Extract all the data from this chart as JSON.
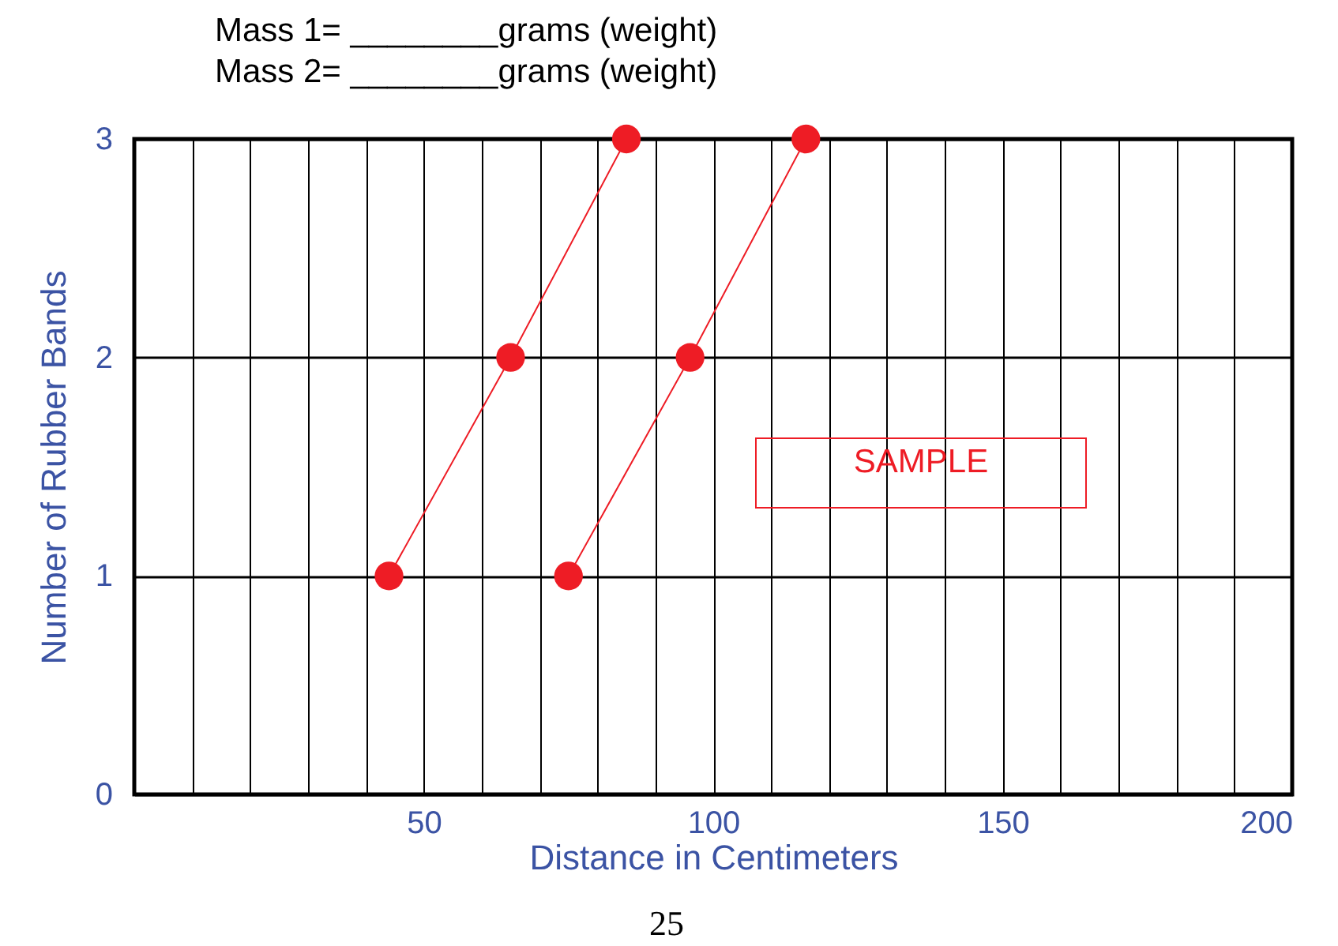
{
  "chart_data": {
    "type": "line",
    "xlabel": "Distance in Centimeters",
    "ylabel": "Number of Rubber Bands",
    "annotations": [
      "Mass 1= ________grams (weight)",
      "Mass 2= ________grams (weight)",
      "SAMPLE",
      "25"
    ],
    "series": [
      {
        "color": "#ee1c25",
        "x": [
          44,
          65,
          85
        ],
        "values": [
          1,
          2,
          3
        ]
      },
      {
        "color": "#ee1c25",
        "x": [
          75,
          96,
          116
        ],
        "values": [
          1,
          2,
          3
        ]
      }
    ],
    "xlim": [
      0,
      200
    ],
    "xticks": [
      {
        "value": 10,
        "label": null
      },
      {
        "value": 20,
        "label": null
      },
      {
        "value": 30,
        "label": null
      },
      {
        "value": 40,
        "label": null
      },
      50,
      {
        "value": 60,
        "label": null
      },
      {
        "value": 70,
        "label": null
      },
      {
        "value": 80,
        "label": null
      },
      {
        "value": 90,
        "label": null
      },
      100,
      {
        "value": 110,
        "label": null
      },
      {
        "value": 120,
        "label": null
      },
      {
        "value": 130,
        "label": null
      },
      {
        "value": 140,
        "label": null
      },
      150,
      {
        "value": 160,
        "label": null
      },
      {
        "value": 170,
        "label": null
      },
      {
        "value": 180,
        "label": null
      },
      {
        "value": 190,
        "label": null
      },
      200
    ],
    "ylim": [
      0,
      3
    ],
    "yticks": [
      0,
      1,
      2,
      3
    ],
    "grid": true,
    "marker": "circle",
    "line_style": "solid",
    "legend": false
  }
}
